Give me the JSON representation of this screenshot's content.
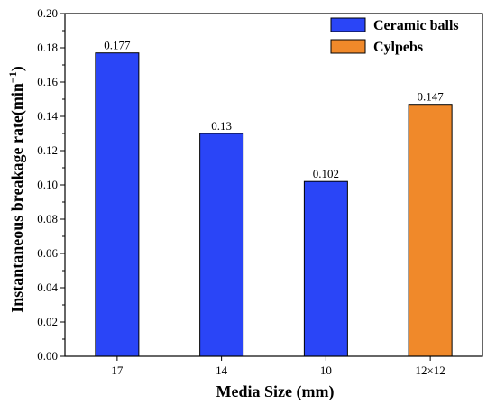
{
  "chart_data": {
    "type": "bar",
    "categories": [
      "17",
      "14",
      "10",
      "12×12"
    ],
    "series": [
      {
        "name": "Ceramic balls",
        "color": "#2a45f7",
        "values": [
          0.177,
          0.13,
          0.102,
          null
        ]
      },
      {
        "name": "Cylpebs",
        "color": "#f0892a",
        "values": [
          null,
          null,
          null,
          0.147
        ]
      }
    ],
    "data_labels": [
      "0.177",
      "0.13",
      "0.102",
      "0.147"
    ],
    "xlabel": "Media Size (mm)",
    "ylabel": {
      "main": "Instantaneous breakage rate(min",
      "sup": "−1",
      "close": ")"
    },
    "ylim": [
      0,
      0.2
    ],
    "yticks": [
      "0.00",
      "0.02",
      "0.04",
      "0.06",
      "0.08",
      "0.10",
      "0.12",
      "0.14",
      "0.16",
      "0.18",
      "0.20"
    ],
    "legend_position": "top-right",
    "grid": false
  }
}
